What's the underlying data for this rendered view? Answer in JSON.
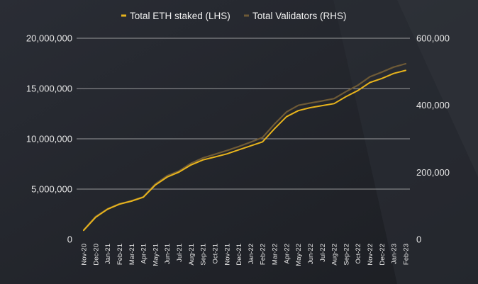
{
  "chart_data": {
    "type": "line",
    "title": "",
    "legend_position": "top-center",
    "colors": {
      "background": "#23262d",
      "grid": "#bfbfbf",
      "text": "#e6e6e6",
      "eth_staked": "#e8b41c",
      "validators": "#6e5a36"
    },
    "categories": [
      "Nov-20",
      "Dec-20",
      "Jan-21",
      "Feb-21",
      "Mar-21",
      "Apr-21",
      "May-21",
      "Jun-21",
      "Jul-21",
      "Aug-21",
      "Sep-21",
      "Oct-21",
      "Nov-21",
      "Dec-21",
      "Jan-22",
      "Feb-22",
      "Mar-22",
      "Apr-22",
      "May-22",
      "Jun-22",
      "Jul-22",
      "Aug-22",
      "Sep-22",
      "Oct-22",
      "Nov-22",
      "Dec-22",
      "Jan-23",
      "Feb-23"
    ],
    "left_axis": {
      "ylim": [
        0,
        20000000
      ],
      "ticks": [
        0,
        5000000,
        10000000,
        15000000,
        20000000
      ],
      "tick_labels": [
        "0",
        "5,000,000",
        "10,000,000",
        "15,000,000",
        "20,000,000"
      ]
    },
    "right_axis": {
      "ylim": [
        0,
        600000
      ],
      "ticks": [
        0,
        200000,
        400000,
        600000
      ],
      "tick_labels": [
        "0",
        "200,000",
        "400,000",
        "600,000"
      ]
    },
    "grid": true,
    "series": [
      {
        "name": "Total ETH staked (LHS)",
        "axis": "left",
        "values": [
          900000,
          2200000,
          3000000,
          3500000,
          3800000,
          4200000,
          5400000,
          6200000,
          6700000,
          7400000,
          7900000,
          8200000,
          8500000,
          8900000,
          9300000,
          9700000,
          11000000,
          12200000,
          12800000,
          13100000,
          13300000,
          13500000,
          14200000,
          14800000,
          15600000,
          16000000,
          16500000,
          16800000
        ]
      },
      {
        "name": "Total Validators (RHS)",
        "axis": "right",
        "values": [
          28000,
          68000,
          91000,
          106000,
          115000,
          127000,
          165000,
          190000,
          204000,
          227000,
          243000,
          254000,
          265000,
          277000,
          290000,
          304000,
          344000,
          380000,
          400000,
          407000,
          413000,
          420000,
          441000,
          460000,
          485000,
          499000,
          514000,
          524000
        ]
      }
    ]
  }
}
